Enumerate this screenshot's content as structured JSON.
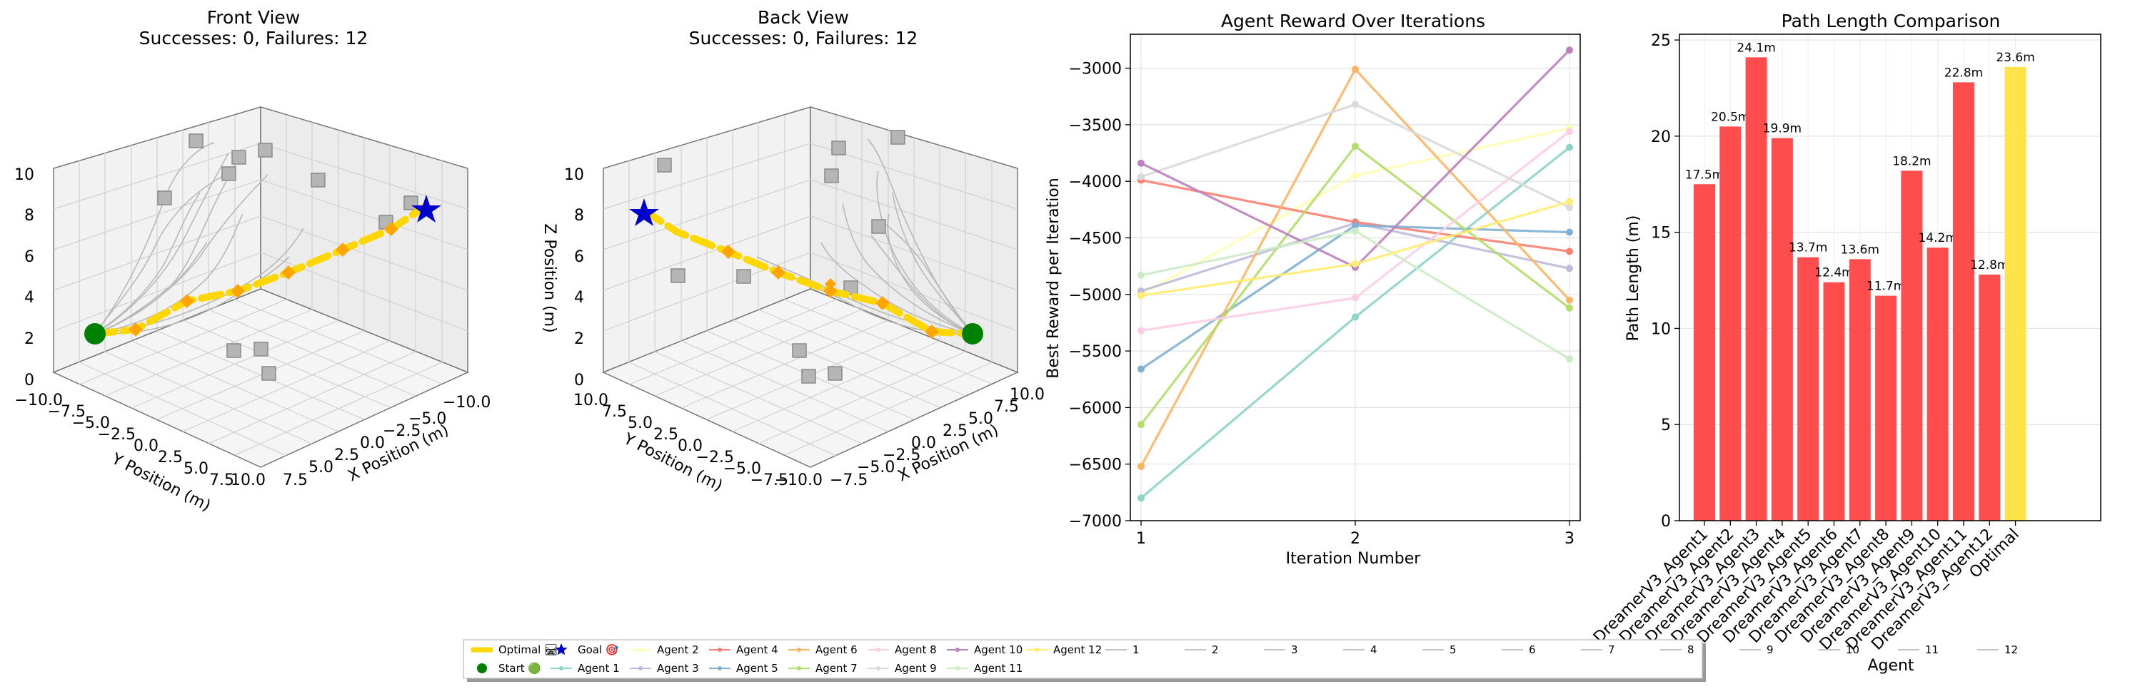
{
  "figure": {
    "colors": {
      "optimal": "#FFD700",
      "waypoint": "#FFA500",
      "start": "#008000",
      "goal": "#0000CD",
      "obstacle": "#A0A0A0",
      "agent_path": "#B0B0B0",
      "bar_agent": "#FF4C4C",
      "bar_optimal": "#FFE34A"
    }
  },
  "chart_data": [
    {
      "type": "scatter3d",
      "title": "Front View",
      "subtitle": "Successes: 0, Failures: 12",
      "xlabel": "X Position (m)",
      "ylabel": "Y Position (m)",
      "zlabel": "",
      "xticks": [
        "10.0",
        "7.5",
        "5.0",
        "2.5",
        "0.0",
        "−2.5",
        "−5.0",
        "−10.0"
      ],
      "yticks": [
        "−10.0",
        "−7.5",
        "−5.0",
        "−2.5",
        "0.0",
        "2.5",
        "5.0",
        "7.5",
        "10.0"
      ],
      "zticks": [
        "0",
        "2",
        "4",
        "6",
        "8",
        "10"
      ],
      "xlim": [
        -10,
        10
      ],
      "ylim": [
        -10,
        10
      ],
      "zlim": [
        0,
        10
      ]
    },
    {
      "type": "scatter3d",
      "title": "Back View",
      "subtitle": "Successes: 0, Failures: 12",
      "xlabel": "X Position (m)",
      "ylabel": "Y Position (m)",
      "zlabel": "Z Position (m)",
      "xticks": [
        "−10.0",
        "−7.5",
        "−5.0",
        "−2.5",
        "0.0",
        "2.5",
        "5.0",
        "7.5",
        "10.0"
      ],
      "yticks": [
        "10.0",
        "7.5",
        "5.0",
        "2.5",
        "0.0",
        "−2.5",
        "−5.0",
        "−7.5",
        "−10.0"
      ],
      "zticks": [
        "0",
        "2",
        "4",
        "6",
        "8",
        "10"
      ],
      "xlim": [
        -10,
        10
      ],
      "ylim": [
        -10,
        10
      ],
      "zlim": [
        0,
        10
      ]
    },
    {
      "type": "line",
      "title": "Agent Reward Over Iterations",
      "xlabel": "Iteration Number",
      "ylabel": "Best Reward per Iteration",
      "x": [
        1,
        2,
        3
      ],
      "xlim": [
        0.95,
        3.05
      ],
      "ylim": [
        -7000,
        -2700
      ],
      "yticks": [
        -7000,
        -6500,
        -6000,
        -5500,
        -5000,
        -4500,
        -4000,
        -3500,
        -3000
      ],
      "grid": true,
      "series": [
        {
          "name": "Agent 1",
          "color": "#8DD3C7",
          "values": [
            -6800,
            -5200,
            -3700
          ]
        },
        {
          "name": "Agent 2",
          "color": "#FFFFB3",
          "values": [
            -5000,
            -3950,
            -3530
          ]
        },
        {
          "name": "Agent 3",
          "color": "#BEBADA",
          "values": [
            -4970,
            -4370,
            -4770
          ]
        },
        {
          "name": "Agent 4",
          "color": "#FB8072",
          "values": [
            -3990,
            -4360,
            -4620
          ]
        },
        {
          "name": "Agent 5",
          "color": "#80B1D3",
          "values": [
            -5660,
            -4390,
            -4450
          ]
        },
        {
          "name": "Agent 6",
          "color": "#FDB462",
          "values": [
            -6520,
            -3010,
            -5050
          ]
        },
        {
          "name": "Agent 7",
          "color": "#B3DE69",
          "values": [
            -6150,
            -3690,
            -5120
          ]
        },
        {
          "name": "Agent 8",
          "color": "#FCCDE5",
          "values": [
            -5320,
            -5030,
            -3560
          ]
        },
        {
          "name": "Agent 9",
          "color": "#D9D9D9",
          "values": [
            -3960,
            -3320,
            -4230
          ]
        },
        {
          "name": "Agent 10",
          "color": "#BC80BD",
          "values": [
            -3840,
            -4760,
            -2840
          ]
        },
        {
          "name": "Agent 11",
          "color": "#CCEBC5",
          "values": [
            -4830,
            -4440,
            -5570
          ]
        },
        {
          "name": "Agent 12",
          "color": "#FFED6F",
          "values": [
            -5010,
            -4730,
            -4180
          ]
        }
      ]
    },
    {
      "type": "bar",
      "title": "Path Length Comparison",
      "xlabel": "Agent",
      "ylabel": "Path Length (m)",
      "ylim": [
        0,
        25.3
      ],
      "yticks": [
        0,
        5,
        10,
        15,
        20,
        25
      ],
      "grid": true,
      "categories": [
        "DreamerV3_Agent1",
        "DreamerV3_Agent2",
        "DreamerV3_Agent3",
        "DreamerV3_Agent4",
        "DreamerV3_Agent5",
        "DreamerV3_Agent6",
        "DreamerV3_Agent7",
        "DreamerV3_Agent8",
        "DreamerV3_Agent9",
        "DreamerV3_Agent10",
        "DreamerV3_Agent11",
        "DreamerV3_Agent12",
        "Optimal"
      ],
      "values": [
        17.5,
        20.5,
        24.1,
        19.9,
        13.7,
        12.4,
        13.6,
        11.7,
        18.2,
        14.2,
        22.8,
        12.8,
        23.6
      ],
      "labels": [
        "17.5m",
        "20.5m",
        "24.1m",
        "19.9m",
        "13.7m",
        "12.4m",
        "13.6m",
        "11.7m",
        "18.2m",
        "14.2m",
        "22.8m",
        "12.8m",
        "23.6m"
      ]
    }
  ],
  "legend": {
    "placement": "bottom-center",
    "entries": [
      {
        "label": "Optimal 🛤",
        "kind": "thick-line",
        "color": "#FFD700"
      },
      {
        "label": "Start 🟢",
        "kind": "dot",
        "color": "#008000"
      },
      {
        "label": "Goal 🎯",
        "kind": "star",
        "color": "#0000CD"
      },
      {
        "label": "Agent 1",
        "kind": "line-dot",
        "color": "#8DD3C7"
      },
      {
        "label": "Agent 2",
        "kind": "line-dot",
        "color": "#FFFFB3"
      },
      {
        "label": "Agent 3",
        "kind": "line-dot",
        "color": "#BEBADA"
      },
      {
        "label": "Agent 4",
        "kind": "line-dot",
        "color": "#FB8072"
      },
      {
        "label": "Agent 5",
        "kind": "line-dot",
        "color": "#80B1D3"
      },
      {
        "label": "Agent 6",
        "kind": "line-dot",
        "color": "#FDB462"
      },
      {
        "label": "Agent 7",
        "kind": "line-dot",
        "color": "#B3DE69"
      },
      {
        "label": "Agent 8",
        "kind": "line-dot",
        "color": "#FCCDE5"
      },
      {
        "label": "Agent 9",
        "kind": "line-dot",
        "color": "#D9D9D9"
      },
      {
        "label": "Agent 10",
        "kind": "line-dot",
        "color": "#BC80BD"
      },
      {
        "label": "Agent 11",
        "kind": "line-dot",
        "color": "#CCEBC5"
      },
      {
        "label": "Agent 12",
        "kind": "line-dot",
        "color": "#FFED6F"
      },
      {
        "label": "1",
        "kind": "line",
        "color": "#B0B0B0"
      },
      {
        "label": "2",
        "kind": "line",
        "color": "#B0B0B0"
      },
      {
        "label": "3",
        "kind": "line",
        "color": "#B0B0B0"
      },
      {
        "label": "4",
        "kind": "line",
        "color": "#B0B0B0"
      },
      {
        "label": "5",
        "kind": "line",
        "color": "#B0B0B0"
      },
      {
        "label": "6",
        "kind": "line",
        "color": "#B0B0B0"
      },
      {
        "label": "7",
        "kind": "line",
        "color": "#B0B0B0"
      },
      {
        "label": "8",
        "kind": "line",
        "color": "#B0B0B0"
      },
      {
        "label": "9",
        "kind": "line",
        "color": "#B0B0B0"
      },
      {
        "label": "10",
        "kind": "line",
        "color": "#B0B0B0"
      },
      {
        "label": "11",
        "kind": "line",
        "color": "#B0B0B0"
      },
      {
        "label": "12",
        "kind": "line",
        "color": "#B0B0B0"
      }
    ]
  }
}
